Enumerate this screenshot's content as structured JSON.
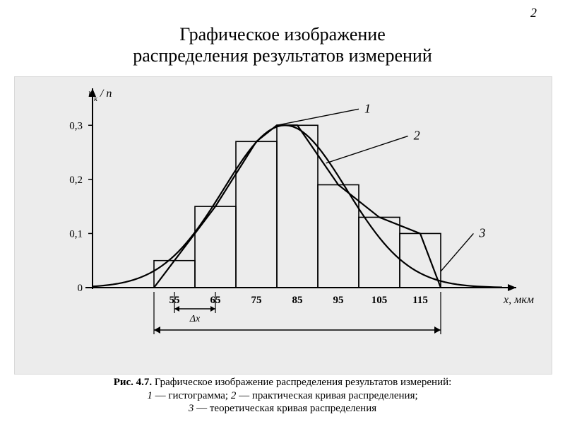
{
  "page_number": "2",
  "title_line1": "Графическое изображение",
  "title_line2": "распределения результатов измерений",
  "chart": {
    "type": "histogram+line",
    "background_color": "#ececec",
    "axis_color": "#000000",
    "grid_color": "#c8c8c8",
    "text_color": "#000000",
    "font_family": "serif",
    "y_label": "nₖ / n",
    "y_label_plain": "n_k / n",
    "x_label": "x, мкм",
    "x_ticks": [
      "55",
      "65",
      "75",
      "85",
      "95",
      "105",
      "115"
    ],
    "x_tick_values": [
      55,
      65,
      75,
      85,
      95,
      105,
      115
    ],
    "bar_edges": [
      50,
      60,
      70,
      80,
      90,
      100,
      110,
      120
    ],
    "bar_heights": [
      0.05,
      0.15,
      0.27,
      0.3,
      0.19,
      0.13,
      0.1
    ],
    "y_ticks": [
      "0",
      "0,1",
      "0,2",
      "0,3"
    ],
    "y_tick_values": [
      0,
      0.1,
      0.2,
      0.3
    ],
    "ylim": [
      0,
      0.35
    ],
    "xlim": [
      35,
      135
    ],
    "bar_fill": "none",
    "bar_stroke": "#000000",
    "bar_stroke_width": 1.6,
    "practical_curve": {
      "label_num": "2",
      "color": "#000000",
      "width": 2.2,
      "points_x": [
        50,
        55,
        65,
        75,
        80,
        85,
        95,
        105,
        115,
        120
      ],
      "points_y": [
        0.0,
        0.05,
        0.15,
        0.27,
        0.3,
        0.3,
        0.19,
        0.13,
        0.1,
        0.0
      ]
    },
    "theoretical_curve": {
      "label_num": "3",
      "color": "#000000",
      "width": 2.2,
      "mu": 82,
      "sigma": 15,
      "amplitude": 0.3
    },
    "callouts": {
      "1": {
        "text": "1",
        "italic": true
      },
      "2": {
        "text": "2",
        "italic": true
      },
      "3": {
        "text": "3",
        "italic": true
      }
    },
    "delta_x_label": "Δx",
    "tick_fontsize": 15,
    "label_fontsize": 16
  },
  "caption": {
    "fig_num": "Рис. 4.7.",
    "main": "Графическое изображение распределения результатов измерений:",
    "item1_num": "1",
    "item1_txt": " — гистограмма; ",
    "item2_num": "2",
    "item2_txt": " — практическая кривая распределения;",
    "item3_num": "3",
    "item3_txt": " — теоретическая кривая распределения"
  }
}
